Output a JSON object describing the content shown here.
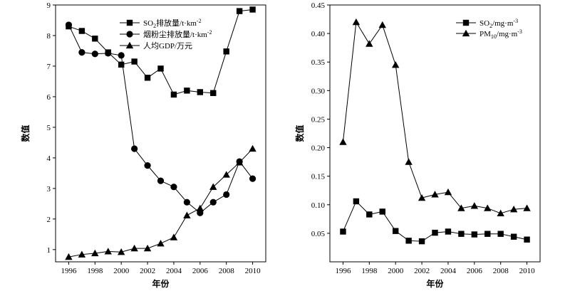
{
  "chart_data": [
    {
      "type": "line",
      "xlabel": "年份",
      "ylabel": "数值",
      "x": [
        1996,
        1997,
        1998,
        1999,
        2000,
        2001,
        2002,
        2003,
        2004,
        2005,
        2006,
        2007,
        2008,
        2009,
        2010
      ],
      "xticks": [
        "1996",
        "1998",
        "2000",
        "2002",
        "2004",
        "2006",
        "2008",
        "2010"
      ],
      "xlim": [
        1995,
        2011
      ],
      "ylim": [
        0.6,
        9
      ],
      "yticks": [
        "1",
        "2",
        "3",
        "4",
        "5",
        "6",
        "7",
        "8",
        "9"
      ],
      "legend_position": "top-right",
      "grid": false,
      "series": [
        {
          "name": "SO",
          "name_sub": "2",
          "name_rest": "排放量/t·km",
          "name_sup": "-2",
          "marker": "square",
          "values": [
            8.3,
            8.15,
            7.9,
            7.45,
            7.05,
            7.15,
            6.62,
            6.92,
            6.07,
            6.2,
            6.15,
            6.12,
            7.48,
            8.8,
            8.85
          ]
        },
        {
          "name": "烟粉尘排放量/t·km",
          "name_sup": "-2",
          "marker": "circle",
          "values": [
            8.35,
            7.45,
            7.4,
            7.42,
            7.35,
            4.3,
            3.75,
            3.25,
            3.05,
            2.55,
            2.2,
            2.55,
            2.8,
            3.88,
            3.32
          ]
        },
        {
          "name": "人均GDP/万元",
          "marker": "triangle",
          "values": [
            0.76,
            0.84,
            0.88,
            0.94,
            0.92,
            1.04,
            1.04,
            1.2,
            1.4,
            2.12,
            2.35,
            3.05,
            3.45,
            3.85,
            4.3
          ]
        }
      ]
    },
    {
      "type": "line",
      "xlabel": "年份",
      "ylabel": "数值",
      "x": [
        1996,
        1997,
        1998,
        1999,
        2000,
        2001,
        2002,
        2003,
        2004,
        2005,
        2006,
        2007,
        2008,
        2009,
        2010
      ],
      "xticks": [
        "1996",
        "1998",
        "2000",
        "2002",
        "2004",
        "2006",
        "2008",
        "2010"
      ],
      "xlim": [
        1995,
        2011
      ],
      "ylim": [
        0.0,
        0.45
      ],
      "yticks": [
        "0.05",
        "0.10",
        "0.15",
        "0.20",
        "0.25",
        "0.30",
        "0.35",
        "0.40",
        "0.45"
      ],
      "legend_position": "top-right",
      "grid": false,
      "series": [
        {
          "name": "SO",
          "name_sub": "2",
          "name_rest": "/mg·m",
          "name_sup": "-3",
          "marker": "square",
          "values": [
            0.053,
            0.106,
            0.083,
            0.088,
            0.054,
            0.037,
            0.036,
            0.051,
            0.053,
            0.049,
            0.048,
            0.049,
            0.049,
            0.044,
            0.039
          ]
        },
        {
          "name": "PM",
          "name_sub": "10",
          "name_rest": "/mg·m",
          "name_sup": "-3",
          "marker": "triangle",
          "values": [
            0.21,
            0.42,
            0.382,
            0.415,
            0.345,
            0.175,
            0.112,
            0.118,
            0.122,
            0.094,
            0.098,
            0.094,
            0.085,
            0.092,
            0.094
          ]
        }
      ]
    }
  ]
}
